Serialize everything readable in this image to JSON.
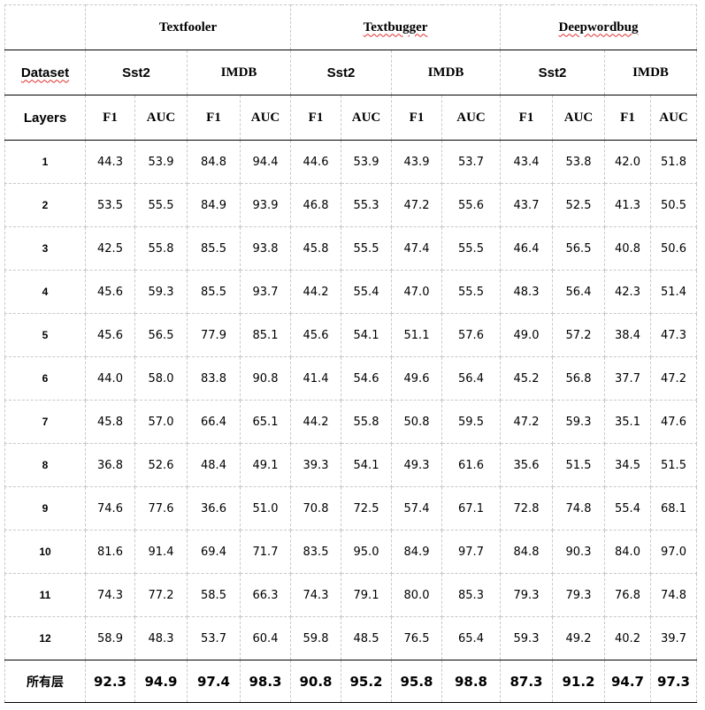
{
  "header": {
    "corner": "",
    "methods": [
      "Textfooler",
      "Textbugger",
      "Deepwordbug"
    ],
    "dataset_label": "Dataset",
    "datasets": [
      "Sst2",
      "IMDB",
      "Sst2",
      "IMDB",
      "Sst2",
      "IMDB"
    ],
    "layers_label": "Layers",
    "metrics": [
      "F1",
      "AUC",
      "F1",
      "AUC",
      "F1",
      "AUC",
      "F1",
      "AUC",
      "F1",
      "AUC",
      "F1",
      "AUC"
    ]
  },
  "rows": [
    {
      "layer": "1",
      "values": [
        "44.3",
        "53.9",
        "84.8",
        "94.4",
        "44.6",
        "53.9",
        "43.9",
        "53.7",
        "43.4",
        "53.8",
        "42.0",
        "51.8"
      ]
    },
    {
      "layer": "2",
      "values": [
        "53.5",
        "55.5",
        "84.9",
        "93.9",
        "46.8",
        "55.3",
        "47.2",
        "55.6",
        "43.7",
        "52.5",
        "41.3",
        "50.5"
      ]
    },
    {
      "layer": "3",
      "values": [
        "42.5",
        "55.8",
        "85.5",
        "93.8",
        "45.8",
        "55.5",
        "47.4",
        "55.5",
        "46.4",
        "56.5",
        "40.8",
        "50.6"
      ]
    },
    {
      "layer": "4",
      "values": [
        "45.6",
        "59.3",
        "85.5",
        "93.7",
        "44.2",
        "55.4",
        "47.0",
        "55.5",
        "48.3",
        "56.4",
        "42.3",
        "51.4"
      ]
    },
    {
      "layer": "5",
      "values": [
        "45.6",
        "56.5",
        "77.9",
        "85.1",
        "45.6",
        "54.1",
        "51.1",
        "57.6",
        "49.0",
        "57.2",
        "38.4",
        "47.3"
      ]
    },
    {
      "layer": "6",
      "values": [
        "44.0",
        "58.0",
        "83.8",
        "90.8",
        "41.4",
        "54.6",
        "49.6",
        "56.4",
        "45.2",
        "56.8",
        "37.7",
        "47.2"
      ]
    },
    {
      "layer": "7",
      "values": [
        "45.8",
        "57.0",
        "66.4",
        "65.1",
        "44.2",
        "55.8",
        "50.8",
        "59.5",
        "47.2",
        "59.3",
        "35.1",
        "47.6"
      ]
    },
    {
      "layer": "8",
      "values": [
        "36.8",
        "52.6",
        "48.4",
        "49.1",
        "39.3",
        "54.1",
        "49.3",
        "61.6",
        "35.6",
        "51.5",
        "34.5",
        "51.5"
      ]
    },
    {
      "layer": "9",
      "values": [
        "74.6",
        "77.6",
        "36.6",
        "51.0",
        "70.8",
        "72.5",
        "57.4",
        "67.1",
        "72.8",
        "74.8",
        "55.4",
        "68.1"
      ]
    },
    {
      "layer": "10",
      "values": [
        "81.6",
        "91.4",
        "69.4",
        "71.7",
        "83.5",
        "95.0",
        "84.9",
        "97.7",
        "84.8",
        "90.3",
        "84.0",
        "97.0"
      ]
    },
    {
      "layer": "11",
      "values": [
        "74.3",
        "77.2",
        "58.5",
        "66.3",
        "74.3",
        "79.1",
        "80.0",
        "85.3",
        "79.3",
        "79.3",
        "76.8",
        "74.8"
      ]
    },
    {
      "layer": "12",
      "values": [
        "58.9",
        "48.3",
        "53.7",
        "60.4",
        "59.8",
        "48.5",
        "76.5",
        "65.4",
        "59.3",
        "49.2",
        "40.2",
        "39.7"
      ]
    }
  ],
  "all_layers": {
    "label": "所有层",
    "values": [
      "92.3",
      "94.9",
      "97.4",
      "98.3",
      "90.8",
      "95.2",
      "95.8",
      "98.8",
      "87.3",
      "91.2",
      "94.7",
      "97.3"
    ]
  }
}
